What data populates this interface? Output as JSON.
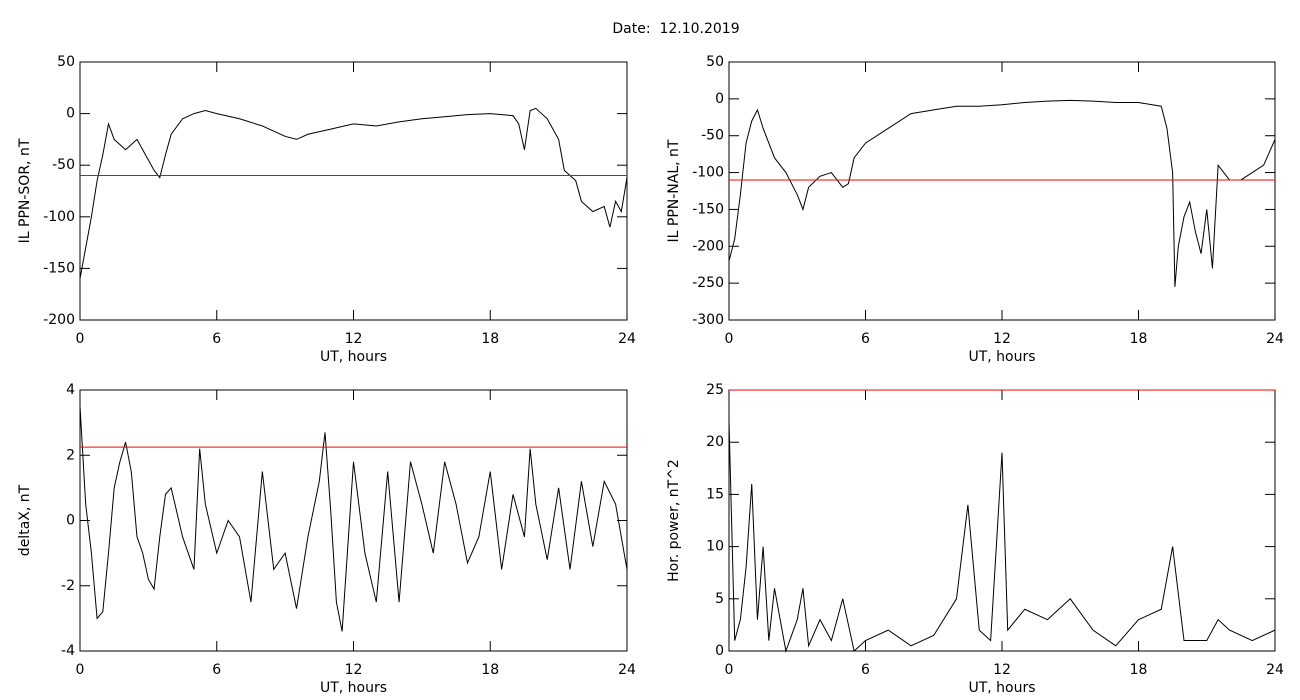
{
  "title": "Date:  12.10.2019",
  "chart_data": [
    {
      "type": "line",
      "xlabel": "UT, hours",
      "ylabel": "IL PPN-SOR, nT",
      "xlim": [
        0,
        24
      ],
      "xticks": [
        0,
        6,
        12,
        18,
        24
      ],
      "ylim": [
        -200,
        50
      ],
      "yticks": [
        -200,
        -150,
        -100,
        -50,
        0,
        50
      ],
      "series": [
        {
          "color": "#000000",
          "x": [
            0,
            0.25,
            0.5,
            0.75,
            1,
            1.25,
            1.5,
            2,
            2.5,
            3,
            3.25,
            3.5,
            3.75,
            4,
            4.5,
            5,
            5.5,
            6,
            7,
            8,
            9,
            9.5,
            10,
            11,
            12,
            13,
            14,
            15,
            16,
            17,
            18,
            19,
            19.25,
            19.5,
            19.75,
            20,
            20.5,
            21,
            21.25,
            21.5,
            21.75,
            22,
            22.5,
            23,
            23.25,
            23.5,
            23.75,
            24
          ],
          "values": [
            -160,
            -130,
            -100,
            -65,
            -40,
            -10,
            -25,
            -35,
            -25,
            -45,
            -55,
            -62,
            -40,
            -20,
            -5,
            0,
            3,
            0,
            -5,
            -12,
            -22,
            -25,
            -20,
            -15,
            -10,
            -12,
            -8,
            -5,
            -3,
            -1,
            0,
            -2,
            -10,
            -35,
            3,
            5,
            -5,
            -25,
            -55,
            -60,
            -65,
            -85,
            -95,
            -90,
            -110,
            -85,
            -95,
            -62
          ]
        },
        {
          "color": "#ff0000",
          "x": [
            0,
            24
          ],
          "values": [
            -60,
            -60
          ]
        }
      ]
    },
    {
      "type": "line",
      "xlabel": "UT, hours",
      "ylabel": "IL PPN-NAL, nT",
      "xlim": [
        0,
        24
      ],
      "xticks": [
        0,
        6,
        12,
        18,
        24
      ],
      "ylim": [
        -300,
        50
      ],
      "yticks": [
        -300,
        -250,
        -200,
        -150,
        -100,
        -50,
        0,
        50
      ],
      "series": [
        {
          "color": "#000000",
          "x": [
            0,
            0.25,
            0.5,
            0.75,
            1,
            1.25,
            1.5,
            2,
            2.5,
            3,
            3.25,
            3.5,
            4,
            4.5,
            5,
            5.25,
            5.5,
            6,
            7,
            8,
            9,
            10,
            11,
            12,
            13,
            14,
            15,
            16,
            17,
            18,
            19,
            19.25,
            19.5,
            19.6,
            19.75,
            20,
            20.25,
            20.5,
            20.75,
            21,
            21.25,
            21.5,
            22,
            22.5,
            23,
            23.5,
            24
          ],
          "values": [
            -220,
            -190,
            -130,
            -60,
            -30,
            -15,
            -40,
            -80,
            -100,
            -130,
            -150,
            -120,
            -105,
            -100,
            -120,
            -115,
            -80,
            -60,
            -40,
            -20,
            -15,
            -10,
            -10,
            -8,
            -5,
            -3,
            -2,
            -3,
            -5,
            -5,
            -10,
            -40,
            -100,
            -255,
            -200,
            -160,
            -140,
            -180,
            -210,
            -150,
            -230,
            -90,
            -110,
            -110,
            -100,
            -90,
            -55
          ]
        },
        {
          "color": "#ff0000",
          "x": [
            0,
            24
          ],
          "values": [
            -110,
            -110
          ]
        }
      ]
    },
    {
      "type": "line",
      "xlabel": "UT, hours",
      "ylabel": "deltaX, nT",
      "xlim": [
        0,
        24
      ],
      "xticks": [
        0,
        6,
        12,
        18,
        24
      ],
      "ylim": [
        -4,
        4
      ],
      "yticks": [
        -4,
        -2,
        0,
        2,
        4
      ],
      "series": [
        {
          "color": "#000000",
          "x": [
            0,
            0.25,
            0.5,
            0.75,
            1,
            1.25,
            1.5,
            1.75,
            2,
            2.25,
            2.5,
            2.75,
            3,
            3.25,
            3.5,
            3.75,
            4,
            4.5,
            5,
            5.25,
            5.5,
            6,
            6.5,
            7,
            7.5,
            8,
            8.5,
            9,
            9.5,
            10,
            10.5,
            10.75,
            11,
            11.25,
            11.5,
            12,
            12.5,
            13,
            13.5,
            14,
            14.5,
            15,
            15.5,
            16,
            16.5,
            17,
            17.5,
            18,
            18.5,
            19,
            19.5,
            19.75,
            20,
            20.5,
            21,
            21.5,
            22,
            22.5,
            23,
            23.5,
            24
          ],
          "values": [
            3.5,
            0.5,
            -1,
            -3,
            -2.8,
            -1,
            1,
            1.8,
            2.4,
            1.5,
            -0.5,
            -1,
            -1.8,
            -2.1,
            -0.5,
            0.8,
            1,
            -0.5,
            -1.5,
            2.2,
            0.5,
            -1,
            0,
            -0.5,
            -2.5,
            1.5,
            -1.5,
            -1,
            -2.7,
            -0.5,
            1.2,
            2.7,
            0.3,
            -2.5,
            -3.4,
            1.8,
            -1,
            -2.5,
            1.5,
            -2.5,
            1.8,
            0.5,
            -1,
            1.8,
            0.5,
            -1.3,
            -0.5,
            1.5,
            -1.5,
            0.8,
            -0.5,
            2.2,
            0.5,
            -1.2,
            1,
            -1.5,
            1.2,
            -0.8,
            1.2,
            0.5,
            -1.5
          ]
        },
        {
          "color": "#ff0000",
          "x": [
            0,
            24
          ],
          "values": [
            2.25,
            2.25
          ]
        }
      ]
    },
    {
      "type": "line",
      "xlabel": "UT, hours",
      "ylabel": "Hor. power, nT^2",
      "xlim": [
        0,
        24
      ],
      "xticks": [
        0,
        6,
        12,
        18,
        24
      ],
      "ylim": [
        0,
        25
      ],
      "yticks": [
        0,
        5,
        10,
        15,
        20,
        25
      ],
      "series": [
        {
          "color": "#000000",
          "x": [
            0,
            0.25,
            0.5,
            0.75,
            1,
            1.25,
            1.5,
            1.75,
            2,
            2.5,
            3,
            3.25,
            3.5,
            4,
            4.5,
            5,
            5.5,
            6,
            7,
            8,
            9,
            10,
            10.5,
            11,
            11.5,
            12,
            12.25,
            13,
            14,
            15,
            16,
            17,
            18,
            19,
            19.5,
            20,
            21,
            21.5,
            22,
            23,
            24
          ],
          "values": [
            22,
            1,
            3,
            8,
            16,
            3,
            10,
            1,
            6,
            0,
            3,
            6,
            0.5,
            3,
            1,
            5,
            0,
            1,
            2,
            0.5,
            1.5,
            5,
            14,
            2,
            1,
            19,
            2,
            4,
            3,
            5,
            2,
            0.5,
            3,
            4,
            10,
            1,
            1,
            3,
            2,
            1,
            2
          ]
        },
        {
          "color": "#ff0000",
          "x": [
            0,
            24
          ],
          "values": [
            25,
            25
          ]
        }
      ]
    }
  ]
}
